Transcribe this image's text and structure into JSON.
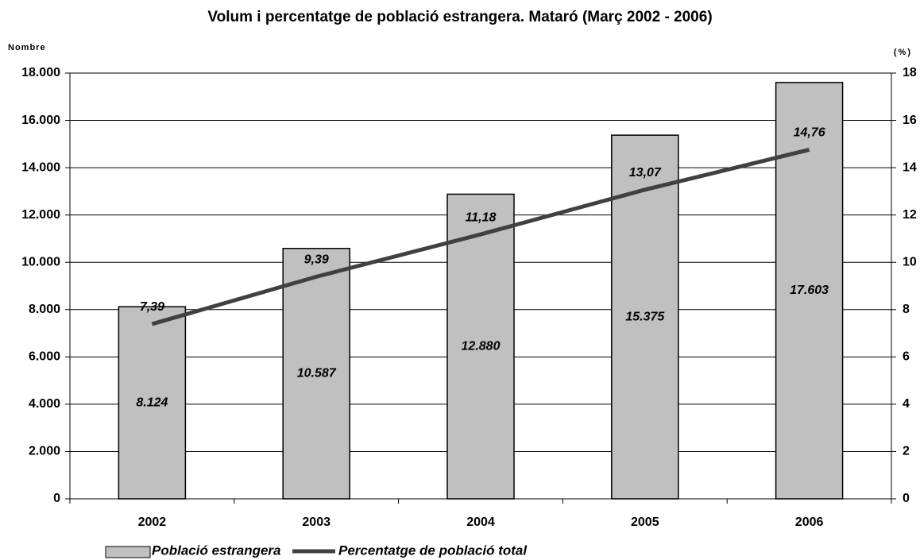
{
  "chart_data": {
    "type": "bar",
    "title": "Volum i percentatge de població estrangera. Mataró (Març 2002 - 2006)",
    "y_label": "Nombre",
    "y2_label": "(%)",
    "categories": [
      "2002",
      "2003",
      "2004",
      "2005",
      "2006"
    ],
    "series": [
      {
        "name": "Població estrangera",
        "type": "bar",
        "color": "#c0c0c0",
        "values": [
          8124,
          10587,
          12880,
          15375,
          17603
        ],
        "value_labels": [
          "8.124",
          "10.587",
          "12.880",
          "15.375",
          "17.603"
        ]
      },
      {
        "name": "Percentatge de població total",
        "type": "line",
        "axis": "y2",
        "color": "#404040",
        "values": [
          7.39,
          9.39,
          11.18,
          13.07,
          14.76
        ],
        "value_labels": [
          "7,39",
          "9,39",
          "11,18",
          "13,07",
          "14,76"
        ]
      }
    ],
    "ylim": [
      0,
      18000
    ],
    "yticks": [
      0,
      {
        "value": 2000,
        "label": "2.000"
      },
      {
        "value": 4000,
        "label": "4.000"
      },
      {
        "value": 6000,
        "label": "6.000"
      },
      {
        "value": 8000,
        "label": "8.000"
      },
      {
        "value": 10000,
        "label": "10.000"
      },
      {
        "value": 12000,
        "label": "12.000"
      },
      {
        "value": 14000,
        "label": "14.000"
      },
      {
        "value": 16000,
        "label": "16.000"
      },
      {
        "value": 18000,
        "label": "18.000"
      }
    ],
    "y2lim": [
      0,
      18
    ],
    "y2ticks": [
      0,
      2,
      4,
      6,
      8,
      10,
      12,
      14,
      16,
      18
    ],
    "grid": true,
    "legend": "bottom"
  }
}
